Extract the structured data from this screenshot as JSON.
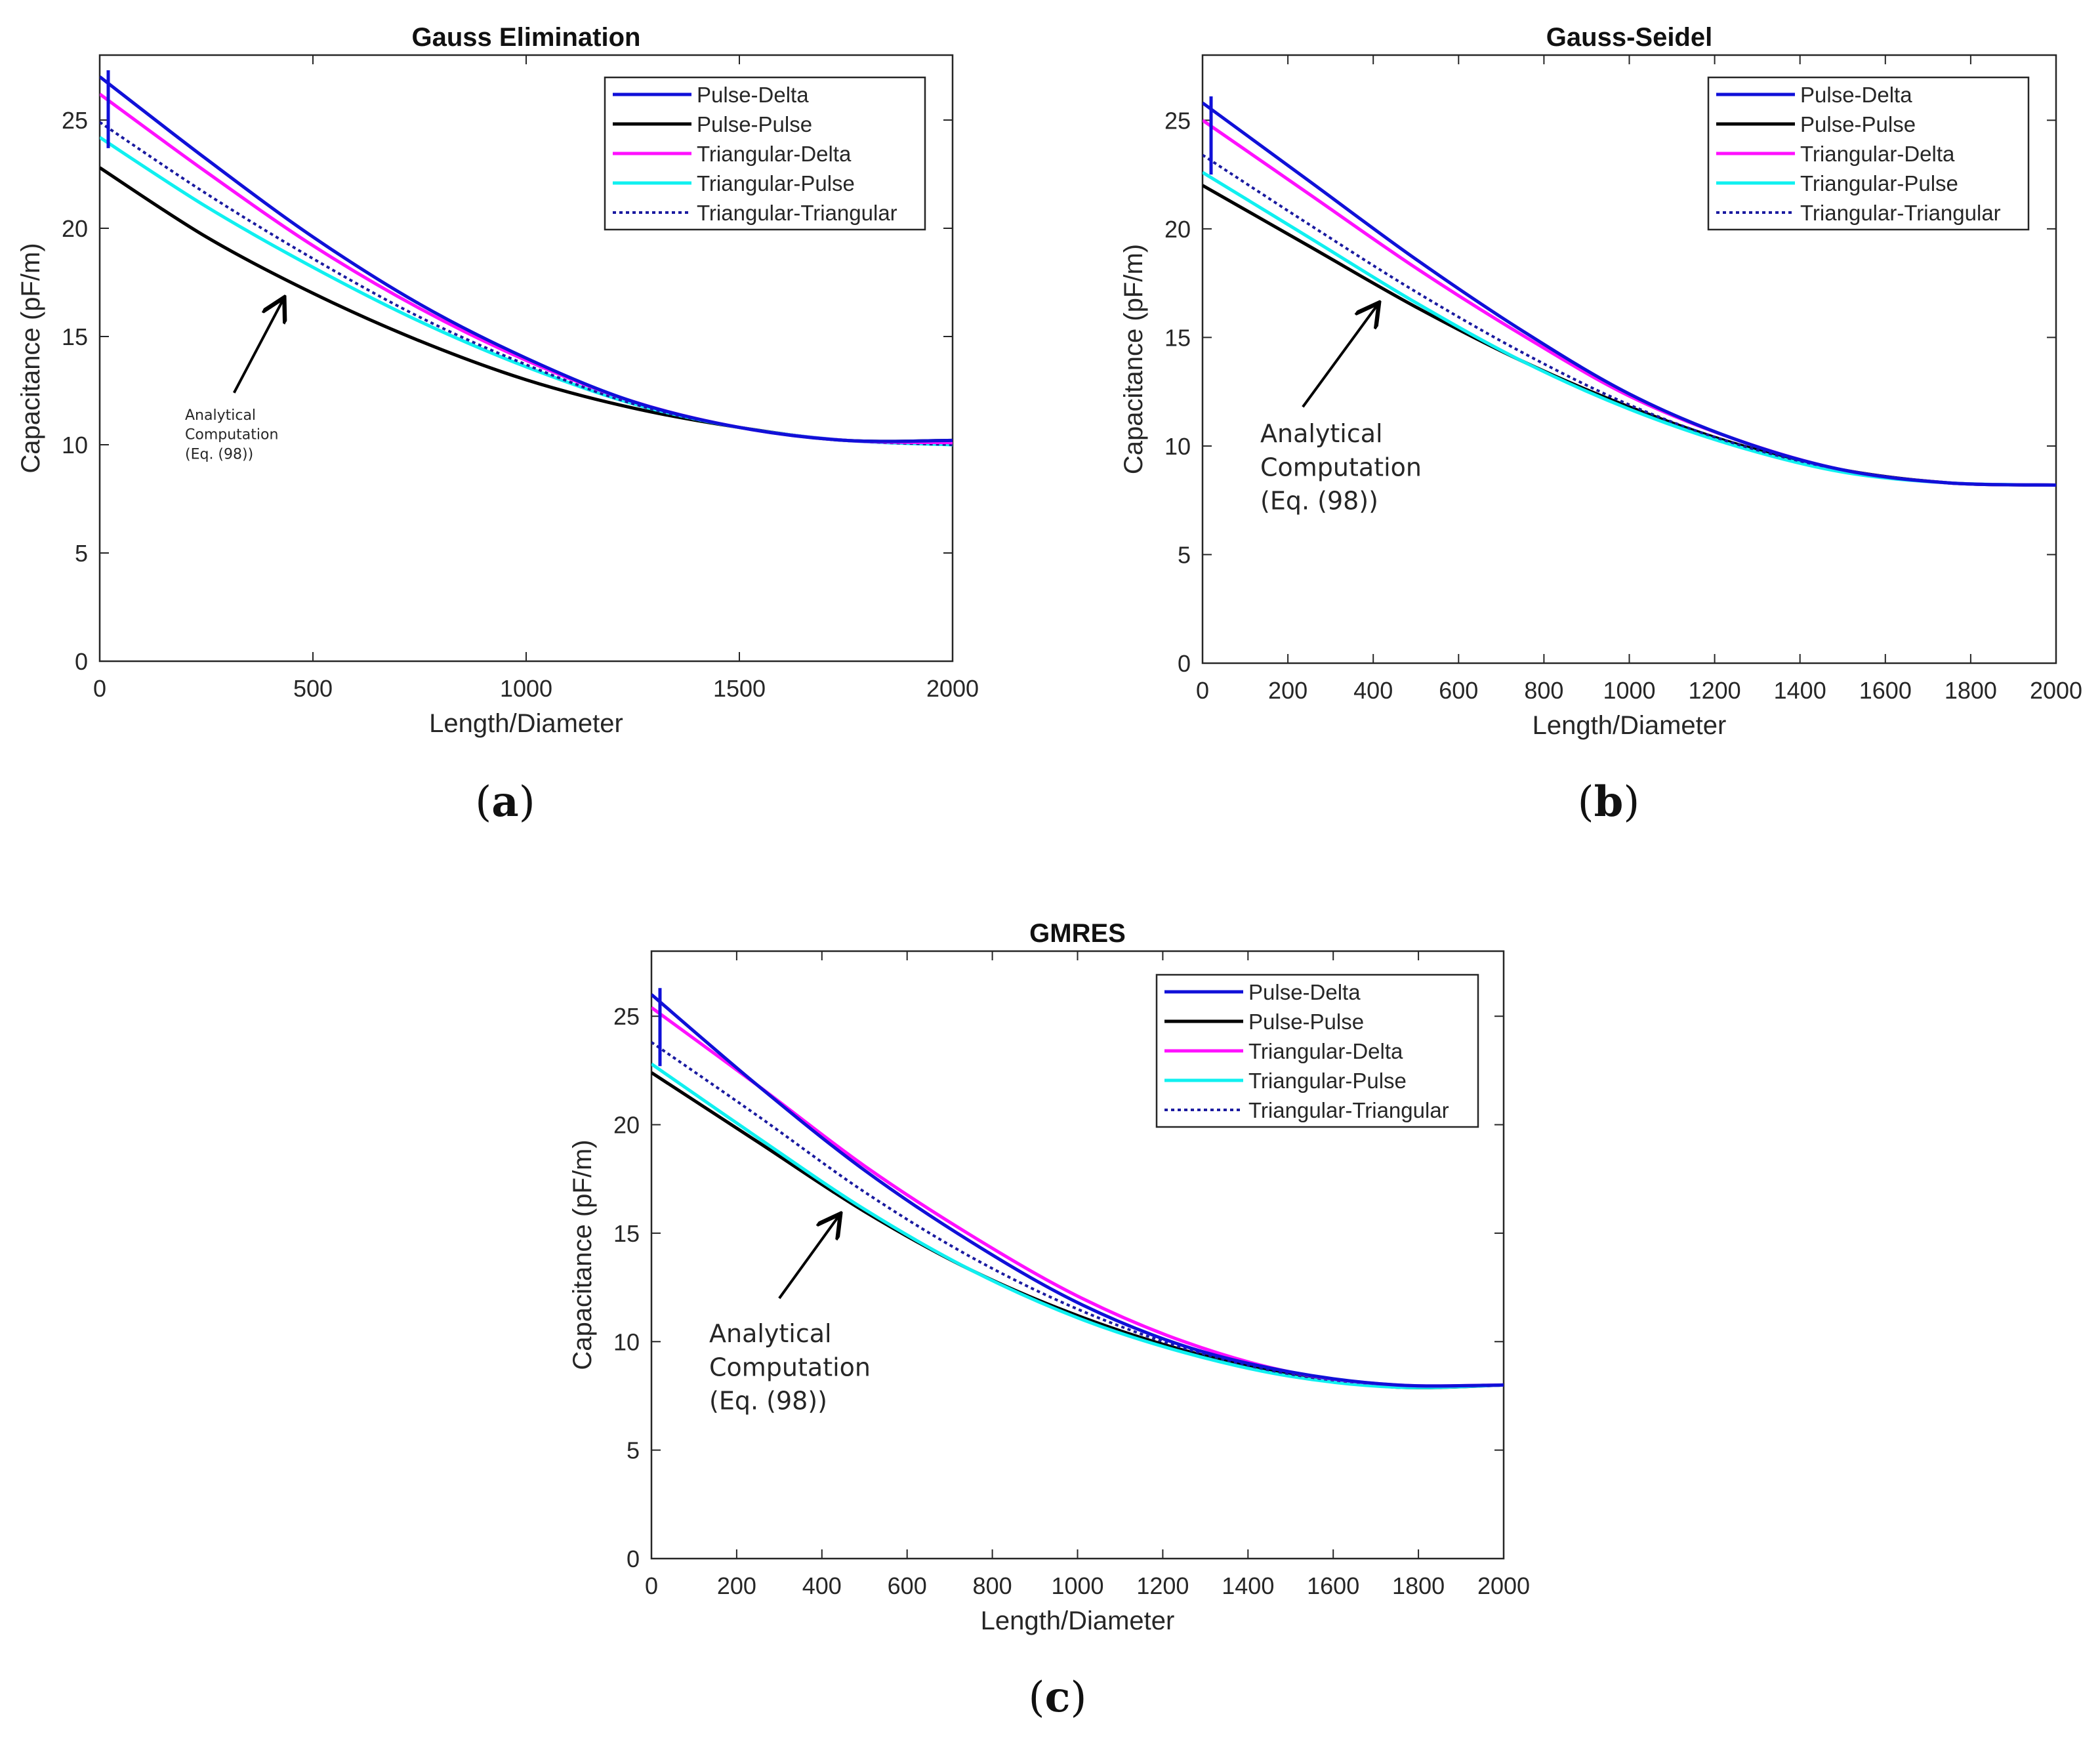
{
  "figure": {
    "captions": [
      "a",
      "b",
      "c"
    ]
  },
  "series_colors": {
    "Pulse-Delta": "#1010d8",
    "Pulse-Pulse": "#000000",
    "Triangular-Delta": "#ff10ff",
    "Triangular-Pulse": "#10f0f0",
    "Triangular-Triangular": "#1a1aa0"
  },
  "chart_data": [
    {
      "type": "line",
      "title": "Gauss Elimination",
      "xlabel": "Length/Diameter",
      "ylabel": "Capacitance (pF/m)",
      "xlim": [
        0,
        2000
      ],
      "ylim": [
        0,
        28
      ],
      "xticks": [
        0,
        500,
        1000,
        1500,
        2000
      ],
      "yticks": [
        0,
        5,
        10,
        15,
        20,
        25
      ],
      "legend_position": "top-right",
      "x": [
        0,
        250,
        500,
        750,
        1000,
        1250,
        1500,
        1750,
        2000
      ],
      "series": [
        {
          "name": "Pulse-Delta",
          "style": "solid",
          "values": [
            27.0,
            23.2,
            19.6,
            16.5,
            14.0,
            12.0,
            10.8,
            10.2,
            10.2
          ]
        },
        {
          "name": "Pulse-Pulse",
          "style": "solid",
          "values": [
            22.8,
            19.6,
            17.0,
            14.8,
            13.0,
            11.7,
            10.8,
            10.2,
            10.2
          ]
        },
        {
          "name": "Triangular-Delta",
          "style": "solid",
          "values": [
            26.2,
            22.6,
            19.2,
            16.3,
            13.9,
            12.0,
            10.8,
            10.2,
            10.1
          ]
        },
        {
          "name": "Triangular-Pulse",
          "style": "solid",
          "values": [
            24.2,
            21.0,
            18.2,
            15.7,
            13.6,
            11.9,
            10.8,
            10.2,
            10.0
          ]
        },
        {
          "name": "Triangular-Triangular",
          "style": "dotted",
          "values": [
            24.9,
            21.6,
            18.6,
            15.9,
            13.7,
            11.9,
            10.8,
            10.2,
            10.0
          ]
        }
      ],
      "annotation": {
        "lines": [
          "Analytical",
          "Computation",
          "(Eq. (98))"
        ],
        "arrow_tip": [
          430,
          16.7
        ],
        "arrow_tail": [
          315,
          12.4
        ]
      }
    },
    {
      "type": "line",
      "title": "Gauss-Seidel",
      "xlabel": "Length/Diameter",
      "ylabel": "Capacitance (pF/m)",
      "xlim": [
        0,
        2000
      ],
      "ylim": [
        0,
        28
      ],
      "xticks": [
        0,
        200,
        400,
        600,
        800,
        1000,
        1200,
        1400,
        1600,
        1800,
        2000
      ],
      "yticks": [
        0,
        5,
        10,
        15,
        20,
        25
      ],
      "legend_position": "top-right",
      "x": [
        0,
        250,
        500,
        750,
        1000,
        1250,
        1500,
        1750,
        2000
      ],
      "series": [
        {
          "name": "Pulse-Delta",
          "style": "solid",
          "values": [
            25.8,
            22.2,
            18.6,
            15.3,
            12.4,
            10.3,
            8.9,
            8.3,
            8.2
          ]
        },
        {
          "name": "Pulse-Pulse",
          "style": "solid",
          "values": [
            22.0,
            19.2,
            16.4,
            13.9,
            11.8,
            10.1,
            8.9,
            8.3,
            8.2
          ]
        },
        {
          "name": "Triangular-Delta",
          "style": "solid",
          "values": [
            25.0,
            21.6,
            18.2,
            15.1,
            12.3,
            10.3,
            8.9,
            8.3,
            8.2
          ]
        },
        {
          "name": "Triangular-Pulse",
          "style": "solid",
          "values": [
            22.6,
            19.6,
            16.6,
            13.9,
            11.7,
            10.0,
            8.8,
            8.3,
            8.2
          ]
        },
        {
          "name": "Triangular-Triangular",
          "style": "dotted",
          "values": [
            23.4,
            20.2,
            17.1,
            14.3,
            11.9,
            10.1,
            8.9,
            8.3,
            8.2
          ]
        }
      ],
      "annotation": {
        "lines": [
          "Analytical",
          "Computation",
          "(Eq. (98))"
        ],
        "arrow_tip": [
          410,
          16.5
        ],
        "arrow_tail": [
          235,
          11.8
        ]
      }
    },
    {
      "type": "line",
      "title": "GMRES",
      "xlabel": "Length/Diameter",
      "ylabel": "Capacitance (pF/m)",
      "xlim": [
        0,
        2000
      ],
      "ylim": [
        0,
        28
      ],
      "xticks": [
        0,
        200,
        400,
        600,
        800,
        1000,
        1200,
        1400,
        1600,
        1800,
        2000
      ],
      "yticks": [
        0,
        5,
        10,
        15,
        20,
        25
      ],
      "legend_position": "top-right",
      "x": [
        0,
        250,
        500,
        750,
        1000,
        1250,
        1500,
        1750,
        2000
      ],
      "series": [
        {
          "name": "Pulse-Delta",
          "style": "solid",
          "values": [
            26.0,
            21.8,
            17.9,
            14.6,
            11.8,
            9.8,
            8.6,
            8.0,
            8.0
          ]
        },
        {
          "name": "Pulse-Pulse",
          "style": "solid",
          "values": [
            22.4,
            19.2,
            16.0,
            13.3,
            11.2,
            9.6,
            8.5,
            7.9,
            8.0
          ]
        },
        {
          "name": "Triangular-Delta",
          "style": "solid",
          "values": [
            25.4,
            21.8,
            18.1,
            14.9,
            12.1,
            10.0,
            8.6,
            8.0,
            8.0
          ]
        },
        {
          "name": "Triangular-Pulse",
          "style": "solid",
          "values": [
            22.8,
            19.4,
            16.1,
            13.3,
            11.1,
            9.5,
            8.4,
            7.9,
            8.0
          ]
        },
        {
          "name": "Triangular-Triangular",
          "style": "dotted",
          "values": [
            23.8,
            20.4,
            16.9,
            13.9,
            11.5,
            9.7,
            8.5,
            8.0,
            8.0
          ]
        }
      ],
      "annotation": {
        "lines": [
          "Analytical",
          "Computation",
          "(Eq. (98))"
        ],
        "arrow_tip": [
          440,
          15.8
        ],
        "arrow_tail": [
          300,
          12.0
        ]
      }
    }
  ]
}
